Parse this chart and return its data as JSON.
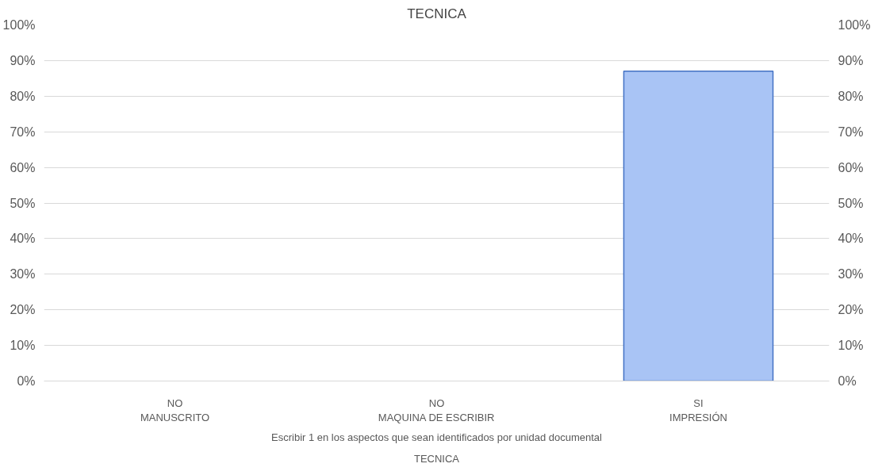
{
  "chart_data": {
    "type": "bar",
    "title": "TECNICA",
    "xlabel": "TECNICA",
    "categories": [
      "NO\nMANUSCRITO",
      "NO\nMAQUINA DE ESCRIBIR",
      "SI\nIMPRESIÓN"
    ],
    "values": [
      0,
      0,
      87
    ],
    "color": "#a9c4f5",
    "ylim": [
      0,
      100
    ],
    "yticks": [
      {
        "value": 0,
        "label": "0%"
      },
      {
        "value": 10,
        "label": "10%"
      },
      {
        "value": 20,
        "label": "20%"
      },
      {
        "value": 30,
        "label": "30%"
      },
      {
        "value": 40,
        "label": "40%"
      },
      {
        "value": 50,
        "label": "50%"
      },
      {
        "value": 60,
        "label": "60%"
      },
      {
        "value": 70,
        "label": "70%"
      },
      {
        "value": 80,
        "label": "80%"
      },
      {
        "value": 90,
        "label": "90%"
      },
      {
        "value": 100,
        "label": "100%"
      }
    ],
    "y2lim": [
      0,
      100
    ],
    "y2ticks": [
      {
        "value": 0,
        "label": "0%"
      },
      {
        "value": 10,
        "label": "10%"
      },
      {
        "value": 20,
        "label": "20%"
      },
      {
        "value": 30,
        "label": "30%"
      },
      {
        "value": 40,
        "label": "40%"
      },
      {
        "value": 50,
        "label": "50%"
      },
      {
        "value": 60,
        "label": "60%"
      },
      {
        "value": 70,
        "label": "70%"
      },
      {
        "value": 80,
        "label": "80%"
      },
      {
        "value": 90,
        "label": "90%"
      },
      {
        "value": 100,
        "label": "100%"
      }
    ],
    "grid": "y",
    "annotations": [
      "Escribir 1 en los aspectos que sean identificados por unidad documental"
    ]
  }
}
